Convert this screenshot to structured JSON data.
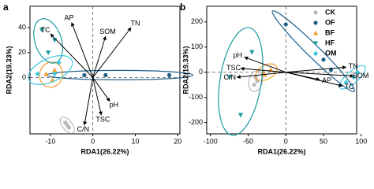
{
  "chart_data": [
    {
      "type": "biplot",
      "panel": "a",
      "xlabel": "RDA1(26.22%)",
      "ylabel": "RDA2(19.33%)",
      "xlim": [
        -14.8,
        20.5
      ],
      "xticks": [
        -10,
        0,
        10,
        20
      ],
      "ylim": [
        -45,
        57
      ],
      "yticks": [
        0,
        20,
        40
      ],
      "series": [
        {
          "name": "CK",
          "color": "#b8b8b8",
          "marker": "circle",
          "x": [
            -6.5,
            -6,
            -5.6
          ],
          "values": [
            -36,
            -38,
            -40
          ]
        },
        {
          "name": "OF",
          "color": "#1f5f8b",
          "marker": "circle",
          "x": [
            -2,
            3,
            18
          ],
          "values": [
            2,
            2,
            2
          ]
        },
        {
          "name": "BF",
          "color": "#f5a030",
          "marker": "triangle-up",
          "x": [
            -11,
            -9.5,
            -9
          ],
          "values": [
            3,
            -2,
            6
          ]
        },
        {
          "name": "HF",
          "color": "#1a9aa0",
          "marker": "triangle-down",
          "x": [
            -12,
            -9,
            -10.5
          ],
          "values": [
            38,
            30,
            20
          ]
        },
        {
          "name": "OM",
          "color": "#40c8e0",
          "marker": "diamond",
          "x": [
            -13,
            -9,
            -8
          ],
          "values": [
            3,
            3,
            12
          ]
        }
      ],
      "arrows": [
        {
          "label": "AP",
          "x": [
            -5
          ],
          "y": [
            44
          ]
        },
        {
          "label": "TC",
          "x": [
            -10
          ],
          "y": [
            35
          ]
        },
        {
          "label": "SOM",
          "x": [
            3
          ],
          "y": [
            33
          ]
        },
        {
          "label": "TN",
          "x": [
            9
          ],
          "y": [
            40
          ]
        },
        {
          "label": "pH",
          "x": [
            4
          ],
          "y": [
            -19
          ]
        },
        {
          "label": "TSC",
          "x": [
            2
          ],
          "y": [
            -30
          ]
        },
        {
          "label": "C/N",
          "x": [
            -2
          ],
          "y": [
            -38
          ]
        }
      ]
    },
    {
      "type": "biplot",
      "panel": "b",
      "xlabel": "RDA1(26.22%)",
      "ylabel": "RDA2(19.33%)",
      "xlim": [
        -105,
        94
      ],
      "xticks": [
        -100,
        -50,
        0,
        50,
        100
      ],
      "ylim": [
        -245,
        262
      ],
      "yticks": [
        -200,
        -100,
        0,
        100,
        200
      ],
      "legend": "upper right",
      "series": [
        {
          "name": "CK",
          "color": "#b8b8b8",
          "marker": "circle",
          "x": [
            -40,
            -42,
            -38
          ],
          "values": [
            -20,
            -50,
            -35
          ]
        },
        {
          "name": "OF",
          "color": "#1f5f8b",
          "marker": "circle",
          "x": [
            0,
            50,
            60
          ],
          "values": [
            190,
            50,
            10
          ]
        },
        {
          "name": "BF",
          "color": "#f5a030",
          "marker": "triangle-up",
          "x": [
            -30,
            -20,
            -28
          ],
          "values": [
            0,
            10,
            -10
          ]
        },
        {
          "name": "HF",
          "color": "#1a9aa0",
          "marker": "triangle-down",
          "x": [
            -60,
            -45,
            -75
          ],
          "values": [
            -170,
            80,
            -20
          ]
        },
        {
          "name": "OM",
          "color": "#40c8e0",
          "marker": "diamond",
          "x": [
            90,
            95,
            80
          ],
          "values": [
            -20,
            0,
            -40
          ]
        }
      ],
      "arrows": [
        {
          "label": "pH",
          "x": [
            -55
          ],
          "y": [
            60
          ]
        },
        {
          "label": "TSC",
          "x": [
            -60
          ],
          "y": [
            15
          ]
        },
        {
          "label": "C/N",
          "x": [
            -65
          ],
          "y": [
            -20
          ]
        },
        {
          "label": "AP",
          "x": [
            45
          ],
          "y": [
            -30
          ]
        },
        {
          "label": "TC",
          "x": [
            75
          ],
          "y": [
            -55
          ]
        },
        {
          "label": "TN",
          "x": [
            80
          ],
          "y": [
            20
          ]
        },
        {
          "label": "SOM",
          "x": [
            90
          ],
          "y": [
            -15
          ]
        }
      ]
    }
  ]
}
